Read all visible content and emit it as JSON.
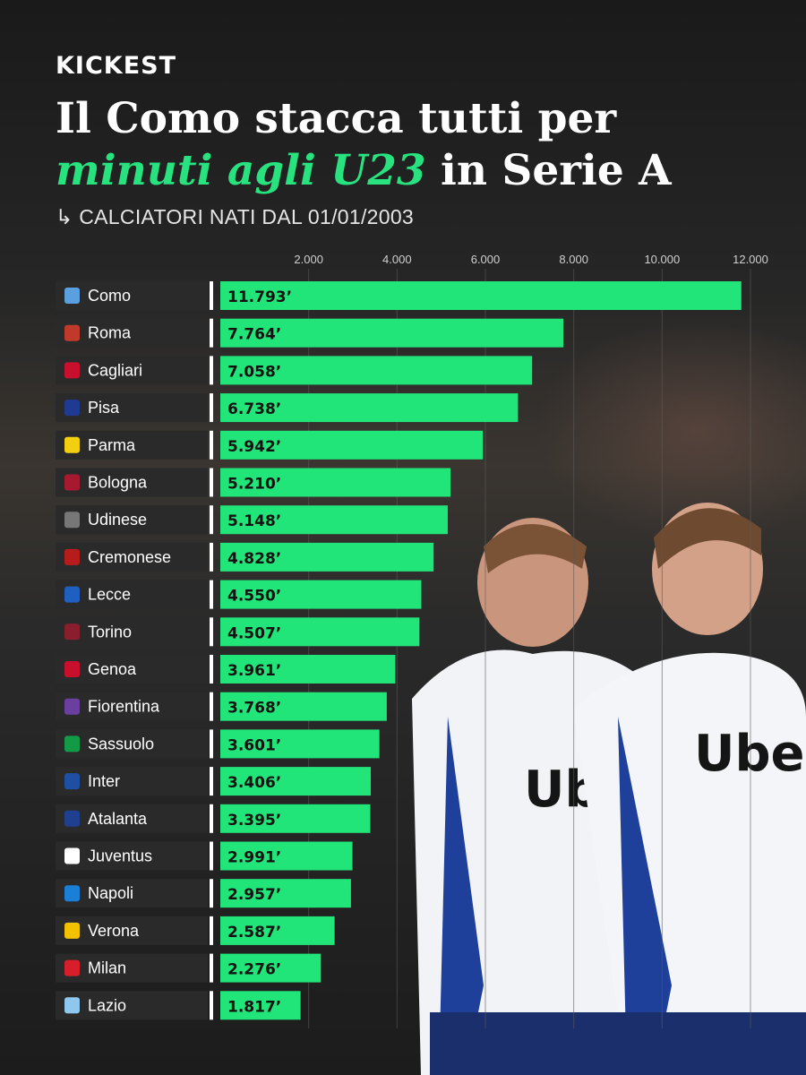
{
  "brand": "KICKEST",
  "headline": {
    "line1": "Il Como stacca tutti per",
    "accent": "minuti agli U23",
    "rest": " in Serie A"
  },
  "subtitle": "↳ CALCIATORI NATI DAL 01/01/2003",
  "colors": {
    "bar": "#22e57a",
    "accent": "#27e27e",
    "label_bg": "#2a2a2a"
  },
  "chart_data": {
    "type": "bar",
    "orientation": "horizontal",
    "title": "Il Como stacca tutti per minuti agli U23 in Serie A",
    "xlim": [
      0,
      12000
    ],
    "x_ticks": [
      {
        "value": 2000,
        "label": "2.000"
      },
      {
        "value": 4000,
        "label": "4.000"
      },
      {
        "value": 6000,
        "label": "6.000"
      },
      {
        "value": 8000,
        "label": "8.000"
      },
      {
        "value": 10000,
        "label": "10.000"
      },
      {
        "value": 12000,
        "label": "12.000"
      }
    ],
    "grid": true,
    "categories": [
      "Como",
      "Roma",
      "Cagliari",
      "Pisa",
      "Parma",
      "Bologna",
      "Udinese",
      "Cremonese",
      "Lecce",
      "Torino",
      "Genoa",
      "Fiorentina",
      "Sassuolo",
      "Inter",
      "Atalanta",
      "Juventus",
      "Napoli",
      "Verona",
      "Milan",
      "Lazio"
    ],
    "values": [
      11793,
      7764,
      7058,
      6738,
      5942,
      5210,
      5148,
      4828,
      4550,
      4507,
      3961,
      3768,
      3601,
      3406,
      3395,
      2991,
      2957,
      2587,
      2276,
      1817
    ],
    "value_labels": [
      "11.793’",
      "7.764’",
      "7.058’",
      "6.738’",
      "5.942’",
      "5.210’",
      "5.148’",
      "4.828’",
      "4.550’",
      "4.507’",
      "3.961’",
      "3.768’",
      "3.601’",
      "3.406’",
      "3.395’",
      "2.991’",
      "2.957’",
      "2.587’",
      "2.276’",
      "1.817’"
    ],
    "crest_colors": [
      "#5aa0e0",
      "#c0392b",
      "#c8102e",
      "#1f3a93",
      "#f2d00f",
      "#a6192e",
      "#777777",
      "#b71c1c",
      "#1f5fbf",
      "#8b1e2d",
      "#c8102e",
      "#6a3fa0",
      "#129a47",
      "#1e4fa3",
      "#1f3f8f",
      "#ffffff",
      "#1a7fd6",
      "#f2c200",
      "#d81e2b",
      "#8ec8ef"
    ]
  }
}
